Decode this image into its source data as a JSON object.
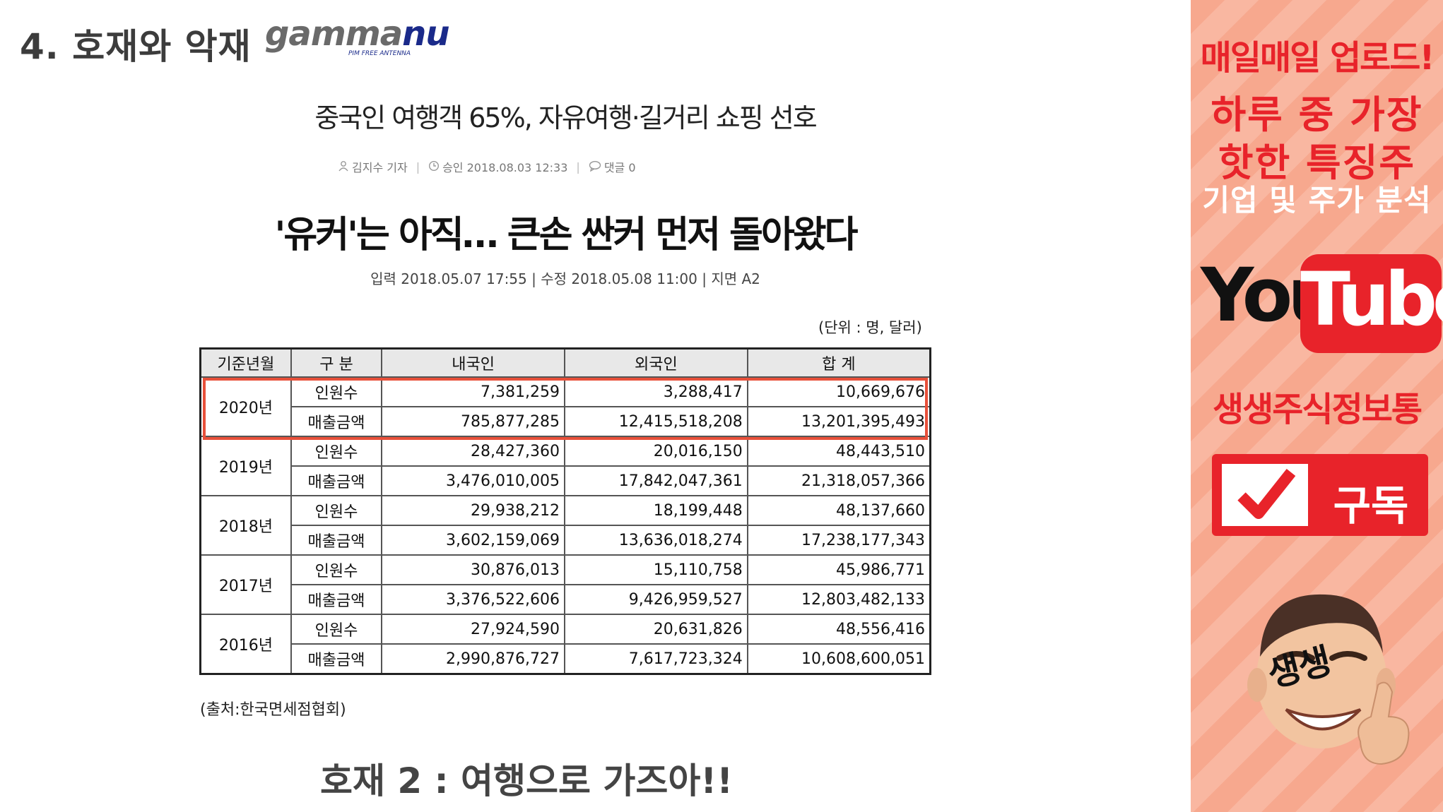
{
  "slide": {
    "heading": "4. 호재와 악재",
    "brand_name_left": "gamma",
    "brand_name_right": "nu",
    "brand_tagline": "PIM FREE ANTENNA",
    "caption": "호재 2 : 여행으로 가즈아!!"
  },
  "article": {
    "title": "중국인 여행객 65%, 자유여행·길거리 쇼핑 선호",
    "author": "김지수 기자",
    "approved": "승인 2018.08.03 12:33",
    "comments": "댓글 0",
    "headline": "'유커'는 아직… 큰손 싼커 먼저 돌아왔다",
    "dateline": "입력 2018.05.07 17:55 | 수정 2018.05.08 11:00 | 지면 A2"
  },
  "table": {
    "unit_note": "(단위 : 명, 달러)",
    "headers": [
      "기준년월",
      "구 분",
      "내국인",
      "외국인",
      "합 계"
    ],
    "rows": [
      {
        "year": "2020년",
        "rows": [
          {
            "category": "인원수",
            "domestic": "7,381,259",
            "foreign": "3,288,417",
            "total": "10,669,676"
          },
          {
            "category": "매출금액",
            "domestic": "785,877,285",
            "foreign": "12,415,518,208",
            "total": "13,201,395,493"
          }
        ]
      },
      {
        "year": "2019년",
        "rows": [
          {
            "category": "인원수",
            "domestic": "28,427,360",
            "foreign": "20,016,150",
            "total": "48,443,510"
          },
          {
            "category": "매출금액",
            "domestic": "3,476,010,005",
            "foreign": "17,842,047,361",
            "total": "21,318,057,366"
          }
        ]
      },
      {
        "year": "2018년",
        "rows": [
          {
            "category": "인원수",
            "domestic": "29,938,212",
            "foreign": "18,199,448",
            "total": "48,137,660"
          },
          {
            "category": "매출금액",
            "domestic": "3,602,159,069",
            "foreign": "13,636,018,274",
            "total": "17,238,177,343"
          }
        ]
      },
      {
        "year": "2017년",
        "rows": [
          {
            "category": "인원수",
            "domestic": "30,876,013",
            "foreign": "15,110,758",
            "total": "45,986,771"
          },
          {
            "category": "매출금액",
            "domestic": "3,376,522,606",
            "foreign": "9,426,959,527",
            "total": "12,803,482,133"
          }
        ]
      },
      {
        "year": "2016년",
        "rows": [
          {
            "category": "인원수",
            "domestic": "27,924,590",
            "foreign": "20,631,826",
            "total": "48,556,416"
          },
          {
            "category": "매출금액",
            "domestic": "2,990,876,727",
            "foreign": "7,617,723,324",
            "total": "10,608,600,051"
          }
        ]
      }
    ],
    "source": "(출처:한국면세점협회)"
  },
  "promo": {
    "line1": "매일매일 업로드!",
    "line2": "하루 중 가장",
    "line3": "핫한 특징주",
    "line4": "기업 및 주가 분석",
    "youtube_you": "You",
    "youtube_tube": "Tube",
    "channel_name": "생생주식정보통",
    "subscribe_label": "구독",
    "mascot_text": "생생",
    "accent_color": "#e8232a",
    "panel_color": "#f7a88e",
    "highlight_color": "#e8503a",
    "icons": [
      "person-icon",
      "clock-icon",
      "comment-icon",
      "checkmark-icon",
      "thumbs-up-icon"
    ]
  }
}
